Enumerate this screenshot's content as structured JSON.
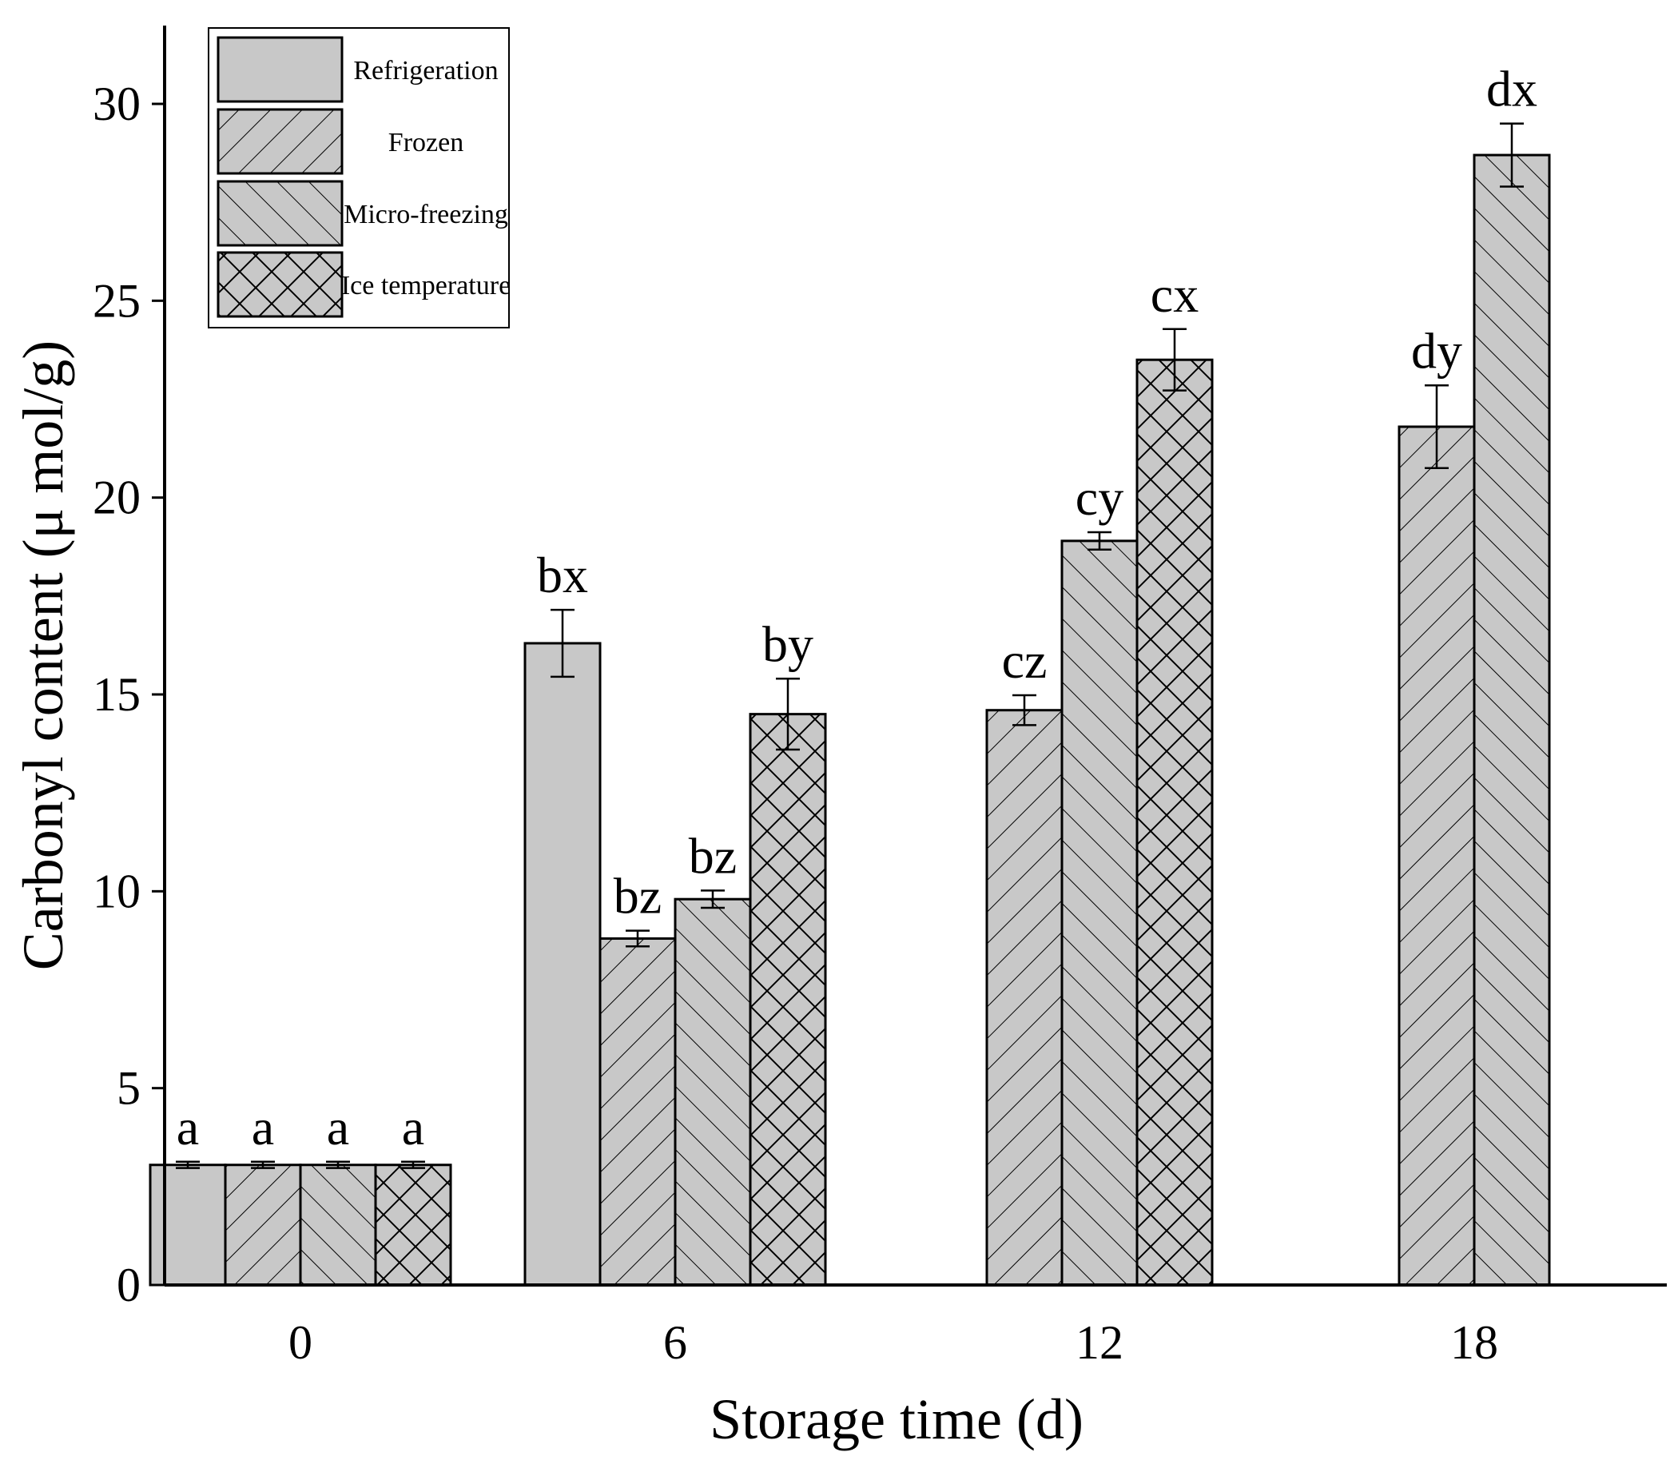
{
  "chart_data": {
    "type": "bar",
    "xlabel": "Storage time (d)",
    "ylabel": "Carbonyl content (μ mol/g)",
    "ylim": [
      0,
      32
    ],
    "yticks": [
      0,
      5,
      10,
      15,
      20,
      25,
      30
    ],
    "legend_position": "top-left",
    "categories": [
      "0",
      "6",
      "12",
      "18"
    ],
    "series": [
      {
        "name": "Refrigeration",
        "pattern": "solid",
        "values": [
          3.05,
          16.3,
          null,
          null
        ],
        "errors": [
          0.08,
          0.85,
          null,
          null
        ],
        "labels": [
          "a",
          "bx",
          "",
          ""
        ]
      },
      {
        "name": "Frozen",
        "pattern": "forward-hatch",
        "values": [
          3.05,
          8.8,
          14.6,
          21.8
        ],
        "errors": [
          0.08,
          0.2,
          0.38,
          1.05
        ],
        "labels": [
          "a",
          "bz",
          "cz",
          "dy"
        ]
      },
      {
        "name": "Micro-freezing",
        "pattern": "back-hatch",
        "values": [
          3.05,
          9.8,
          18.9,
          28.7
        ],
        "errors": [
          0.08,
          0.22,
          0.22,
          0.8
        ],
        "labels": [
          "a",
          "bz",
          "cy",
          "dx"
        ]
      },
      {
        "name": "Ice temperature",
        "pattern": "cross-hatch",
        "values": [
          3.05,
          14.5,
          23.5,
          null
        ],
        "errors": [
          0.08,
          0.9,
          0.78,
          null
        ],
        "labels": [
          "a",
          "by",
          "cx",
          ""
        ]
      }
    ]
  },
  "colors": {
    "bar_fill": "#c8c8c8",
    "stroke": "#000000",
    "background": "#ffffff"
  }
}
